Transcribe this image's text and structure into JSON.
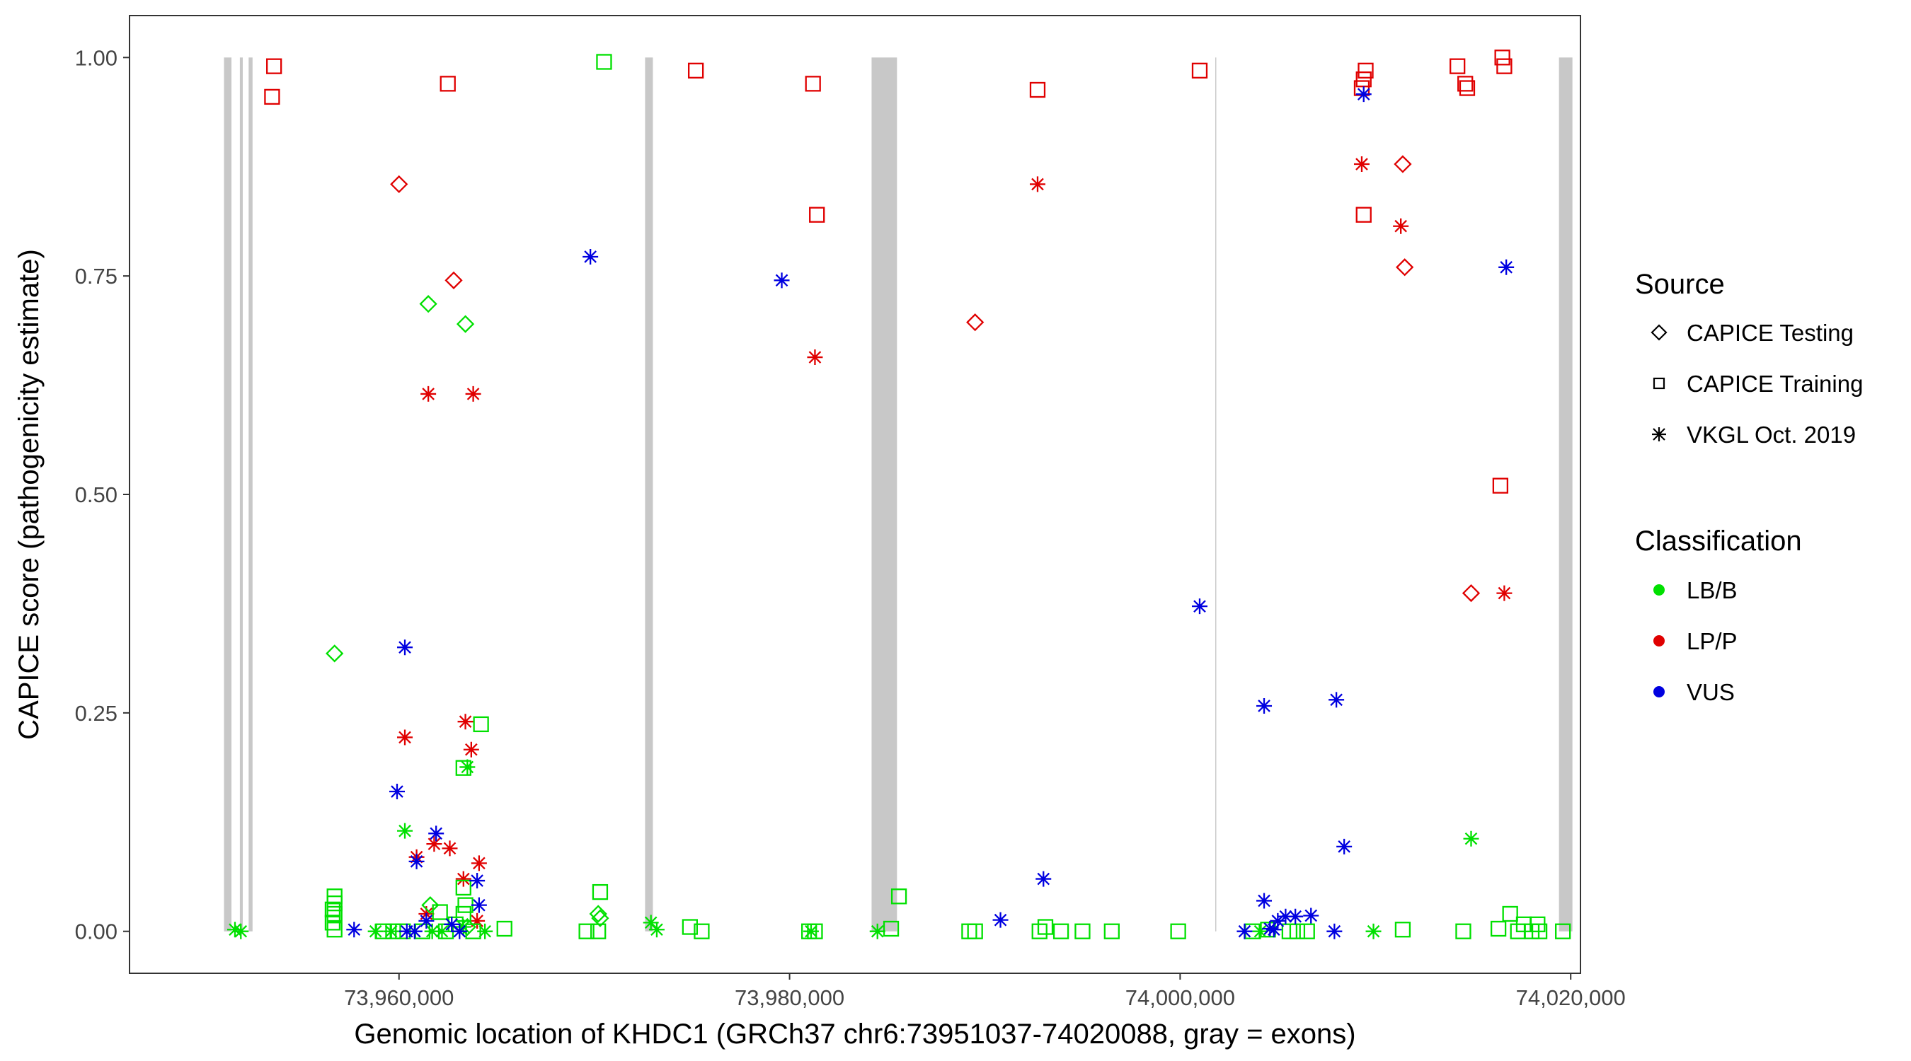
{
  "colors": {
    "LB/B": "#00e000",
    "LP/P": "#e00000",
    "VUS": "#0000e0",
    "exon": "#c8c8c8",
    "frame": "#333333",
    "tick_text": "#444444"
  },
  "chart_data": {
    "type": "scatter",
    "xlabel": "Genomic location of KHDC1 (GRCh37 chr6:73951037-74020088, gray = exons)",
    "ylabel": "CAPICE score (pathogenicity estimate)",
    "xlim": [
      73946200,
      74020500
    ],
    "ylim": [
      -0.048,
      1.048
    ],
    "xticks": [
      73960000,
      73980000,
      74000000,
      74020000
    ],
    "xtick_labels": [
      "73,960,000",
      "73,980,000",
      "74,000,000",
      "74,020,000"
    ],
    "yticks": [
      0,
      0.25,
      0.5,
      0.75,
      1.0
    ],
    "ytick_labels": [
      "0.00",
      "0.25",
      "0.50",
      "0.75",
      "1.00"
    ],
    "exons": [
      [
        73951037,
        73951420
      ],
      [
        73951850,
        73952000
      ],
      [
        73952300,
        73952500
      ],
      [
        73972600,
        73973000
      ],
      [
        73984200,
        73985500
      ],
      [
        74001800,
        74001850
      ],
      [
        74019400,
        74020088
      ]
    ],
    "legend": {
      "source_title": "Source",
      "sources": [
        "CAPICE Testing",
        "CAPICE Training",
        "VKGL Oct. 2019"
      ],
      "classification_title": "Classification",
      "classifications": [
        "LB/B",
        "LP/P",
        "VUS"
      ]
    },
    "series": [
      {
        "source": "CAPICE Training",
        "classification": "LP/P",
        "points": [
          [
            73953500,
            0.955
          ],
          [
            73953600,
            0.99
          ],
          [
            73962500,
            0.97
          ],
          [
            73975200,
            0.985
          ],
          [
            73981200,
            0.97
          ],
          [
            73981400,
            0.82
          ],
          [
            73992700,
            0.963
          ],
          [
            74001000,
            0.985
          ],
          [
            74009500,
            0.985
          ],
          [
            74009400,
            0.975
          ],
          [
            74009300,
            0.965
          ],
          [
            74009400,
            0.82
          ],
          [
            74014200,
            0.99
          ],
          [
            74014600,
            0.97
          ],
          [
            74014700,
            0.965
          ],
          [
            74016500,
            1.0
          ],
          [
            74016600,
            0.99
          ],
          [
            74016400,
            0.51
          ]
        ]
      },
      {
        "source": "CAPICE Testing",
        "classification": "LP/P",
        "points": [
          [
            73960000,
            0.855
          ],
          [
            73962800,
            0.745
          ],
          [
            73989500,
            0.697
          ],
          [
            74011400,
            0.878
          ],
          [
            74011500,
            0.76
          ],
          [
            74014900,
            0.387
          ]
        ]
      },
      {
        "source": "VKGL Oct. 2019",
        "classification": "LP/P",
        "points": [
          [
            73961500,
            0.615
          ],
          [
            73963800,
            0.615
          ],
          [
            73981300,
            0.657
          ],
          [
            73992700,
            0.855
          ],
          [
            74009300,
            0.878
          ],
          [
            74011300,
            0.807
          ],
          [
            74016600,
            0.387
          ],
          [
            73960300,
            0.222
          ],
          [
            73963400,
            0.24
          ],
          [
            73963700,
            0.208
          ],
          [
            73960900,
            0.085
          ],
          [
            73961800,
            0.1
          ],
          [
            73962600,
            0.095
          ],
          [
            73963300,
            0.06
          ],
          [
            73964100,
            0.078
          ],
          [
            73961400,
            0.02
          ],
          [
            73964000,
            0.012
          ]
        ]
      },
      {
        "source": "CAPICE Testing",
        "classification": "LB/B",
        "points": [
          [
            73956700,
            0.318
          ],
          [
            73961500,
            0.718
          ],
          [
            73963400,
            0.695
          ],
          [
            73961600,
            0.03
          ],
          [
            73963500,
            0.005
          ],
          [
            73970200,
            0.02
          ],
          [
            73970300,
            0.015
          ]
        ]
      },
      {
        "source": "CAPICE Training",
        "classification": "LB/B",
        "points": [
          [
            73970500,
            0.995
          ],
          [
            73964200,
            0.237
          ],
          [
            73963300,
            0.187
          ],
          [
            73956700,
            0.04
          ],
          [
            73956700,
            0.032
          ],
          [
            73956600,
            0.025
          ],
          [
            73956700,
            0.02
          ],
          [
            73956600,
            0.01
          ],
          [
            73956700,
            0.002
          ],
          [
            73962100,
            0.022
          ],
          [
            73963300,
            0.05
          ],
          [
            73963400,
            0.03
          ],
          [
            73963300,
            0.02
          ],
          [
            73962900,
            0.008
          ],
          [
            73959200,
            0.0
          ],
          [
            73959700,
            0.0
          ],
          [
            73960200,
            0.0
          ],
          [
            73961200,
            0.0
          ],
          [
            73962400,
            0.0
          ],
          [
            73963800,
            0.0
          ],
          [
            73965400,
            0.003
          ],
          [
            73970300,
            0.045
          ],
          [
            73969600,
            0.0
          ],
          [
            73970200,
            0.0
          ],
          [
            73974900,
            0.005
          ],
          [
            73975500,
            0.0
          ],
          [
            73981000,
            0.0
          ],
          [
            73981300,
            0.0
          ],
          [
            73985200,
            0.003
          ],
          [
            73985600,
            0.04
          ],
          [
            73989200,
            0.0
          ],
          [
            73989500,
            0.0
          ],
          [
            73992800,
            0.0
          ],
          [
            73993100,
            0.005
          ],
          [
            73993900,
            0.0
          ],
          [
            73995000,
            0.0
          ],
          [
            73996500,
            0.0
          ],
          [
            73999900,
            0.0
          ],
          [
            74003700,
            0.0
          ],
          [
            74004500,
            0.002
          ],
          [
            74005600,
            0.0
          ],
          [
            74006000,
            0.0
          ],
          [
            74006500,
            0.0
          ],
          [
            74011400,
            0.002
          ],
          [
            74014500,
            0.0
          ],
          [
            74016300,
            0.003
          ],
          [
            74016900,
            0.02
          ],
          [
            74017300,
            0.0
          ],
          [
            74017600,
            0.008
          ],
          [
            74018000,
            0.0
          ],
          [
            74018300,
            0.008
          ],
          [
            74018400,
            0.0
          ],
          [
            74019600,
            0.0
          ]
        ]
      },
      {
        "source": "VKGL Oct. 2019",
        "classification": "LB/B",
        "points": [
          [
            73951600,
            0.002
          ],
          [
            73951900,
            0.0
          ],
          [
            73960300,
            0.115
          ],
          [
            73963500,
            0.188
          ],
          [
            73963300,
            0.005
          ],
          [
            73964400,
            0.0
          ],
          [
            73958800,
            0.0
          ],
          [
            73959600,
            0.0
          ],
          [
            73961700,
            0.0
          ],
          [
            73962200,
            0.0
          ],
          [
            73972900,
            0.01
          ],
          [
            73973200,
            0.002
          ],
          [
            73981100,
            0.0
          ],
          [
            73984500,
            0.0
          ],
          [
            74004100,
            0.0
          ],
          [
            74009900,
            0.0
          ],
          [
            74014900,
            0.106
          ]
        ]
      },
      {
        "source": "VKGL Oct. 2019",
        "classification": "VUS",
        "points": [
          [
            73969800,
            0.772
          ],
          [
            73979600,
            0.745
          ],
          [
            74009400,
            0.958
          ],
          [
            74016700,
            0.76
          ],
          [
            74001000,
            0.372
          ],
          [
            73960300,
            0.325
          ],
          [
            74004300,
            0.258
          ],
          [
            74008000,
            0.265
          ],
          [
            73959900,
            0.16
          ],
          [
            73961900,
            0.112
          ],
          [
            73960900,
            0.08
          ],
          [
            74008400,
            0.097
          ],
          [
            73993000,
            0.06
          ],
          [
            73964000,
            0.058
          ],
          [
            73964100,
            0.03
          ],
          [
            73957700,
            0.002
          ],
          [
            73960400,
            0.0
          ],
          [
            73960800,
            0.0
          ],
          [
            73961400,
            0.012
          ],
          [
            73962700,
            0.008
          ],
          [
            73963100,
            0.0
          ],
          [
            73990800,
            0.013
          ],
          [
            74003300,
            0.0
          ],
          [
            74004300,
            0.035
          ],
          [
            74004600,
            0.003
          ],
          [
            74005000,
            0.012
          ],
          [
            74005400,
            0.017
          ],
          [
            74005900,
            0.017
          ],
          [
            74006700,
            0.018
          ],
          [
            74007900,
            0.0
          ],
          [
            74004800,
            0.002
          ]
        ]
      }
    ]
  }
}
